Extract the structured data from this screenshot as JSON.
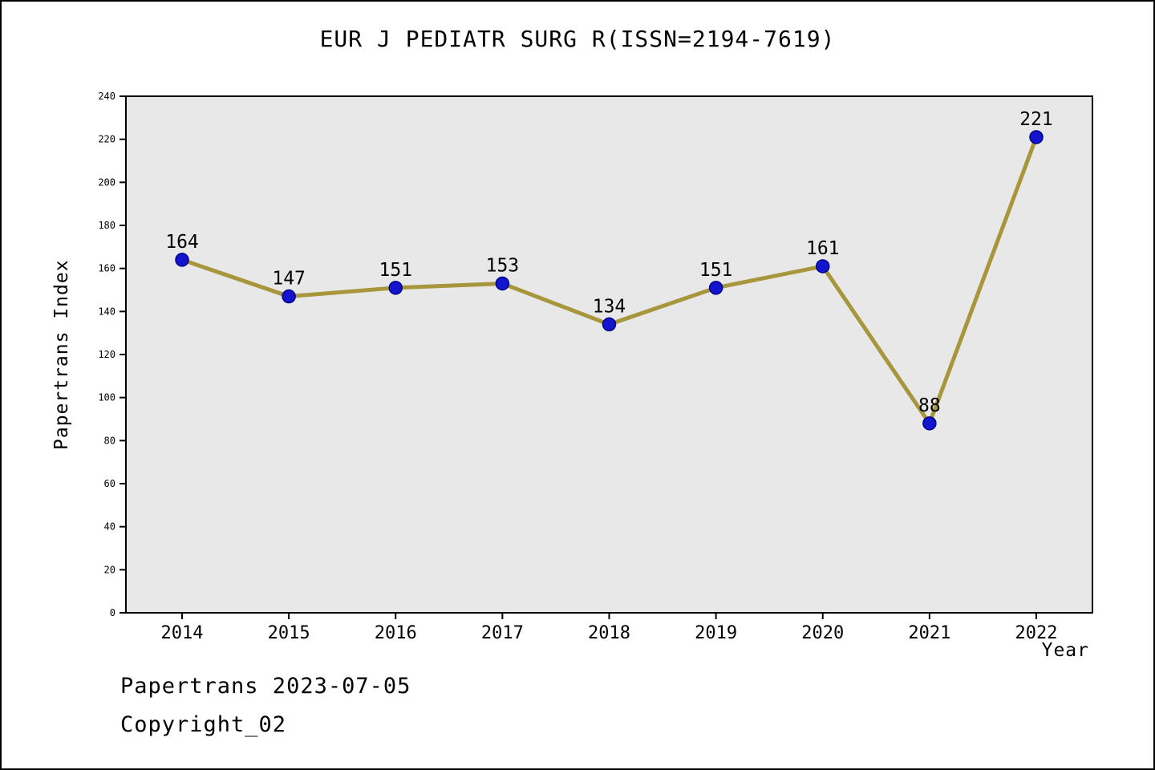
{
  "title": "EUR J PEDIATR SURG R(ISSN=2194-7619)",
  "footer": {
    "line1": "Papertrans 2023-07-05",
    "line2": "Copyright_02"
  },
  "chart_data": {
    "type": "line",
    "title": "EUR J PEDIATR SURG R(ISSN=2194-7619)",
    "xlabel": "Year",
    "ylabel": "Papertrans Index",
    "categories": [
      "2014",
      "2015",
      "2016",
      "2017",
      "2018",
      "2019",
      "2020",
      "2021",
      "2022"
    ],
    "series": [
      {
        "name": "Papertrans Index",
        "values": [
          164,
          147,
          151,
          153,
          134,
          151,
          161,
          88,
          221
        ]
      }
    ],
    "ylim": [
      0,
      240
    ],
    "ytick_step": 20,
    "grid": "off",
    "legend": "none",
    "colors": {
      "line": "#a8963c",
      "marker_fill": "#1414cc",
      "marker_edge": "#00008b",
      "plot_background": "#e8e8e8",
      "frame": "#000000",
      "text": "#000000"
    }
  }
}
